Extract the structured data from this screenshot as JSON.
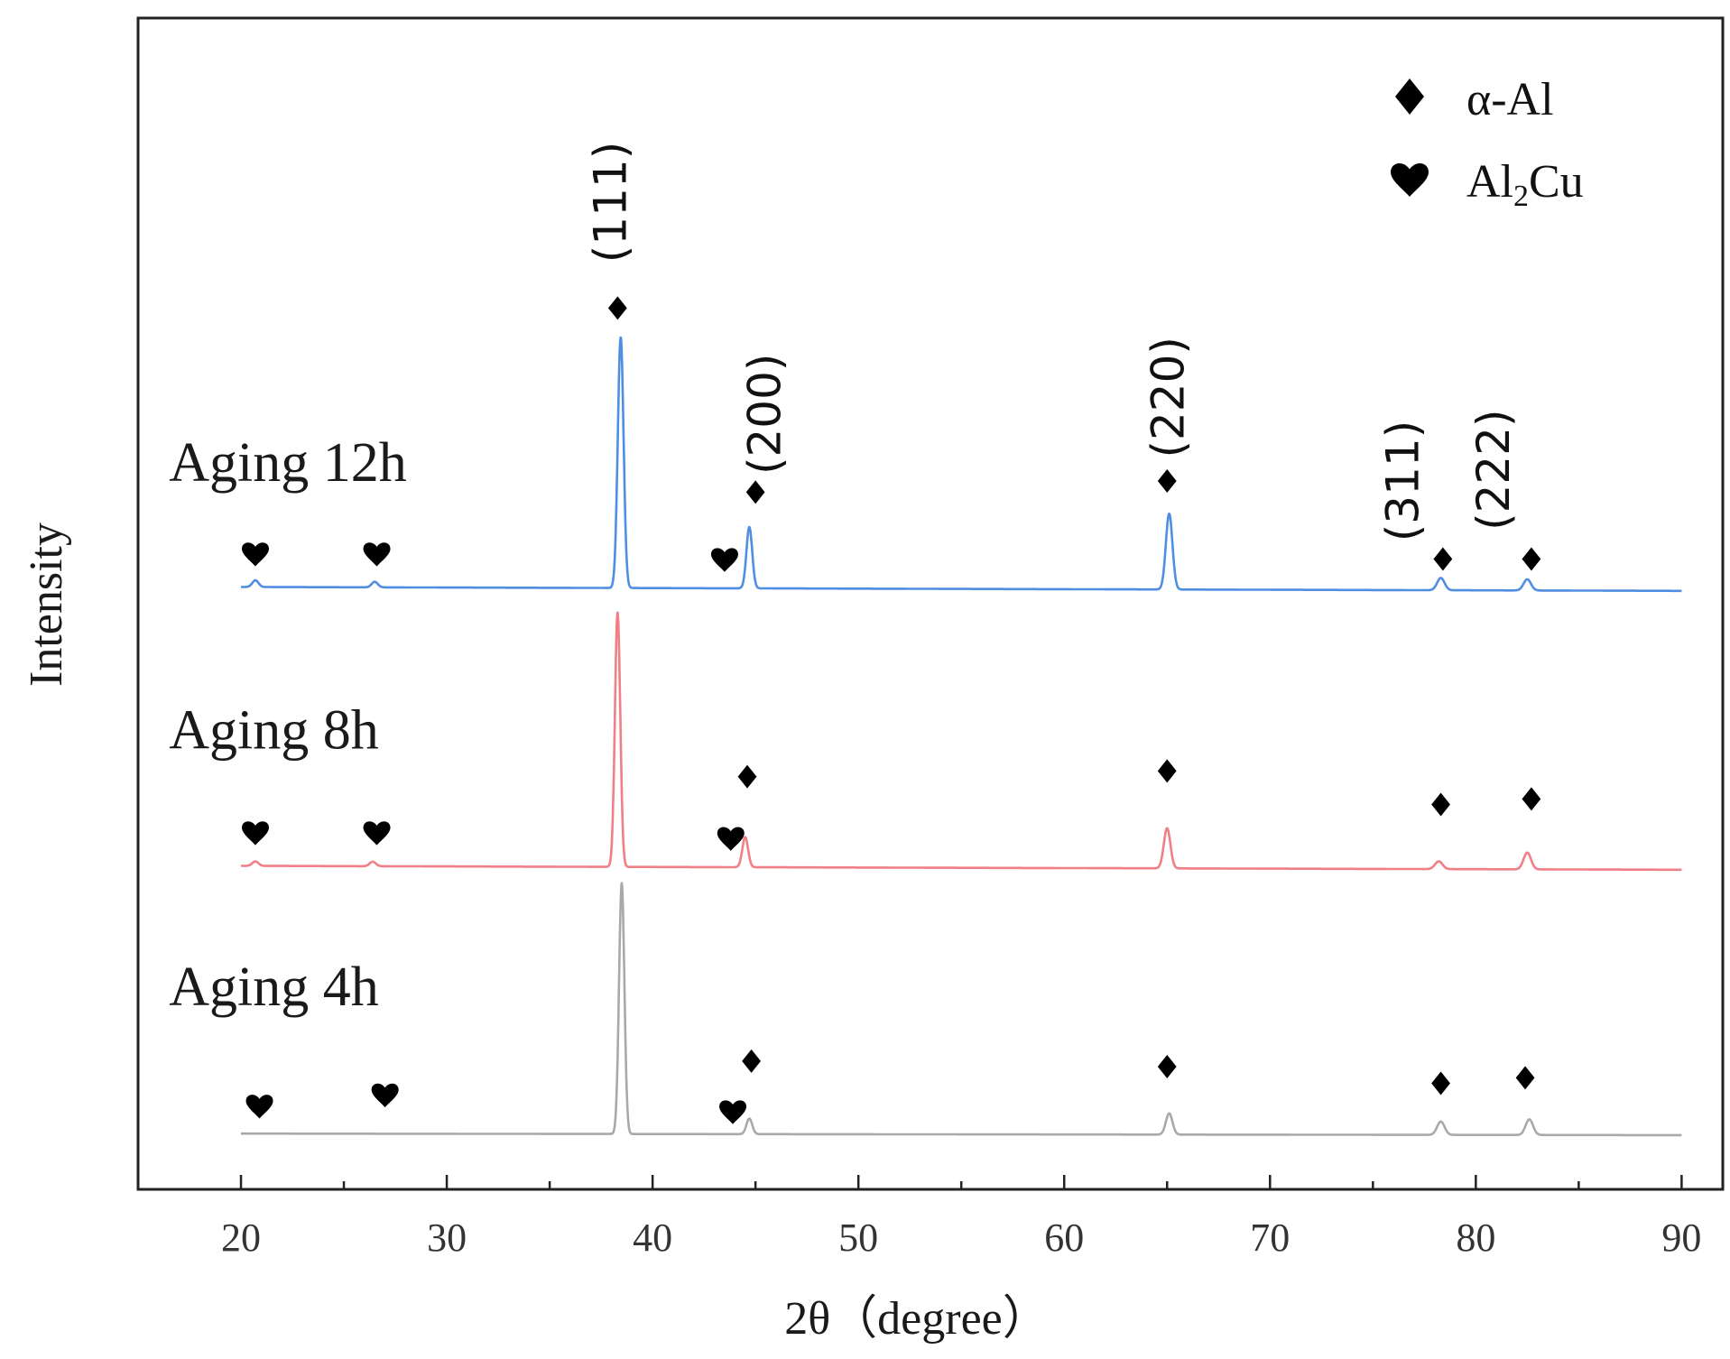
{
  "chart_data": {
    "type": "line",
    "title": "",
    "xlabel": "2θ（degree）",
    "ylabel": "Intensity",
    "xlim": [
      15,
      92
    ],
    "ylim": [
      0,
      105
    ],
    "grid": false,
    "yticks_shown": false,
    "xticks": [
      20,
      30,
      40,
      50,
      60,
      70,
      80,
      90
    ],
    "xtick_labels": [
      "20",
      "30",
      "40",
      "50",
      "60",
      "70",
      "80",
      "90"
    ],
    "legend_position": "top-right",
    "legend": [
      {
        "marker": "diamond",
        "label": "α-Al"
      },
      {
        "marker": "heart",
        "label_main": "Al",
        "label_sub": "2",
        "label_tail": "Cu"
      }
    ],
    "series": [
      {
        "name": "Aging 12h",
        "color": "#4f8ee0",
        "baseline": 54,
        "slope": -0.005,
        "peaks": [
          {
            "x": 20.7,
            "h": 0.6,
            "w": 0.15
          },
          {
            "x": 26.5,
            "h": 0.5,
            "w": 0.15
          },
          {
            "x": 38.45,
            "h": 22.5,
            "w": 0.14
          },
          {
            "x": 44.7,
            "h": 5.5,
            "w": 0.14
          },
          {
            "x": 65.1,
            "h": 6.8,
            "w": 0.16
          },
          {
            "x": 78.3,
            "h": 1.1,
            "w": 0.18
          },
          {
            "x": 82.5,
            "h": 1.0,
            "w": 0.18
          }
        ]
      },
      {
        "name": "Aging 8h",
        "color": "#f07f86",
        "baseline": 29,
        "slope": -0.005,
        "peaks": [
          {
            "x": 20.7,
            "h": 0.4,
            "w": 0.15
          },
          {
            "x": 26.4,
            "h": 0.4,
            "w": 0.15
          },
          {
            "x": 38.3,
            "h": 22.8,
            "w": 0.13
          },
          {
            "x": 44.5,
            "h": 2.7,
            "w": 0.14
          },
          {
            "x": 65.0,
            "h": 3.6,
            "w": 0.16
          },
          {
            "x": 78.2,
            "h": 0.7,
            "w": 0.18
          },
          {
            "x": 82.5,
            "h": 1.5,
            "w": 0.18
          }
        ]
      },
      {
        "name": "Aging 4h",
        "color": "#a9a9a9",
        "baseline": 5,
        "slope": -0.002,
        "peaks": [
          {
            "x": 38.5,
            "h": 22.5,
            "w": 0.13
          },
          {
            "x": 44.7,
            "h": 1.4,
            "w": 0.14
          },
          {
            "x": 65.1,
            "h": 1.9,
            "w": 0.16
          },
          {
            "x": 78.3,
            "h": 1.2,
            "w": 0.18
          },
          {
            "x": 82.6,
            "h": 1.4,
            "w": 0.18
          }
        ]
      }
    ],
    "sample_labels": [
      {
        "text": "Aging 12h",
        "x": 16.5,
        "y": 63.5
      },
      {
        "text": "Aging 8h",
        "x": 16.5,
        "y": 39.5
      },
      {
        "text": "Aging 4h",
        "x": 16.5,
        "y": 16.5
      }
    ],
    "markers": [
      {
        "type": "heart",
        "x": 20.7,
        "y": 57
      },
      {
        "type": "heart",
        "x": 26.6,
        "y": 57
      },
      {
        "type": "diamond",
        "x": 38.3,
        "y": 79
      },
      {
        "type": "heart",
        "x": 43.5,
        "y": 56.5
      },
      {
        "type": "diamond",
        "x": 45.0,
        "y": 62.5
      },
      {
        "type": "diamond",
        "x": 65.0,
        "y": 63.5
      },
      {
        "type": "diamond",
        "x": 78.4,
        "y": 56.5
      },
      {
        "type": "diamond",
        "x": 82.7,
        "y": 56.5
      },
      {
        "type": "heart",
        "x": 20.7,
        "y": 32
      },
      {
        "type": "heart",
        "x": 26.6,
        "y": 32
      },
      {
        "type": "heart",
        "x": 43.8,
        "y": 31.5
      },
      {
        "type": "diamond",
        "x": 44.6,
        "y": 37
      },
      {
        "type": "diamond",
        "x": 65.0,
        "y": 37.5
      },
      {
        "type": "diamond",
        "x": 78.3,
        "y": 34.5
      },
      {
        "type": "diamond",
        "x": 82.7,
        "y": 35
      },
      {
        "type": "heart",
        "x": 20.9,
        "y": 7.5
      },
      {
        "type": "heart",
        "x": 27.0,
        "y": 8.5
      },
      {
        "type": "heart",
        "x": 43.9,
        "y": 7
      },
      {
        "type": "diamond",
        "x": 44.8,
        "y": 11.5
      },
      {
        "type": "diamond",
        "x": 65.0,
        "y": 11
      },
      {
        "type": "diamond",
        "x": 78.3,
        "y": 9.5
      },
      {
        "type": "diamond",
        "x": 82.4,
        "y": 10
      }
    ],
    "hkl_labels": [
      {
        "text": "(111)",
        "x": 38.7,
        "y": 88.5
      },
      {
        "text": "(200)",
        "x": 46.2,
        "y": 69.5
      },
      {
        "text": "(220)",
        "x": 65.8,
        "y": 71
      },
      {
        "text": "(311)",
        "x": 77.2,
        "y": 63.5
      },
      {
        "text": "(222)",
        "x": 81.6,
        "y": 64.5
      }
    ]
  }
}
